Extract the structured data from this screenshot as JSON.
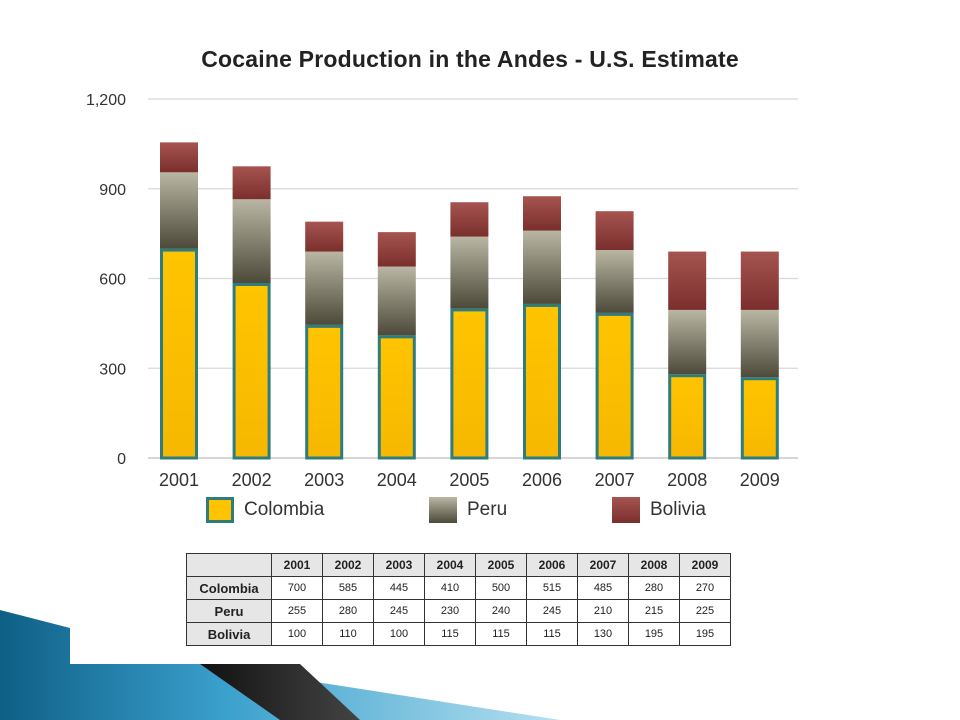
{
  "chart_data": {
    "type": "bar",
    "stacked": true,
    "title": "Cocaine Production in the Andes - U.S. Estimate",
    "xlabel": "",
    "ylabel": "",
    "categories": [
      "2001",
      "2002",
      "2003",
      "2004",
      "2005",
      "2006",
      "2007",
      "2008",
      "2009"
    ],
    "ylim": [
      0,
      1200
    ],
    "yticks": [
      "0",
      "300",
      "600",
      "900",
      "1,200"
    ],
    "ytick_values": [
      0,
      300,
      600,
      900,
      1200
    ],
    "grid": true,
    "legend_position": "bottom",
    "series": [
      {
        "name": "Colombia",
        "values": [
          700,
          585,
          445,
          410,
          500,
          515,
          485,
          280,
          270
        ],
        "color": "#ffc300",
        "outline": "#2f7c7c"
      },
      {
        "name": "Peru",
        "values": [
          255,
          280,
          245,
          230,
          240,
          245,
          210,
          215,
          225
        ],
        "color": "#7e7a66"
      },
      {
        "name": "Bolivia",
        "values": [
          100,
          110,
          100,
          115,
          115,
          115,
          130,
          195,
          195
        ],
        "color": "#8e3b38"
      }
    ]
  },
  "table": {
    "columns": [
      "2001",
      "2002",
      "2003",
      "2004",
      "2005",
      "2006",
      "2007",
      "2008",
      "2009"
    ],
    "rows": [
      {
        "label": "Colombia",
        "values": [
          "700",
          "585",
          "445",
          "410",
          "500",
          "515",
          "485",
          "280",
          "270"
        ]
      },
      {
        "label": "Peru",
        "values": [
          "255",
          "280",
          "245",
          "230",
          "240",
          "245",
          "210",
          "215",
          "225"
        ]
      },
      {
        "label": "Bolivia",
        "values": [
          "100",
          "110",
          "100",
          "115",
          "115",
          "115",
          "130",
          "195",
          "195"
        ]
      }
    ]
  }
}
